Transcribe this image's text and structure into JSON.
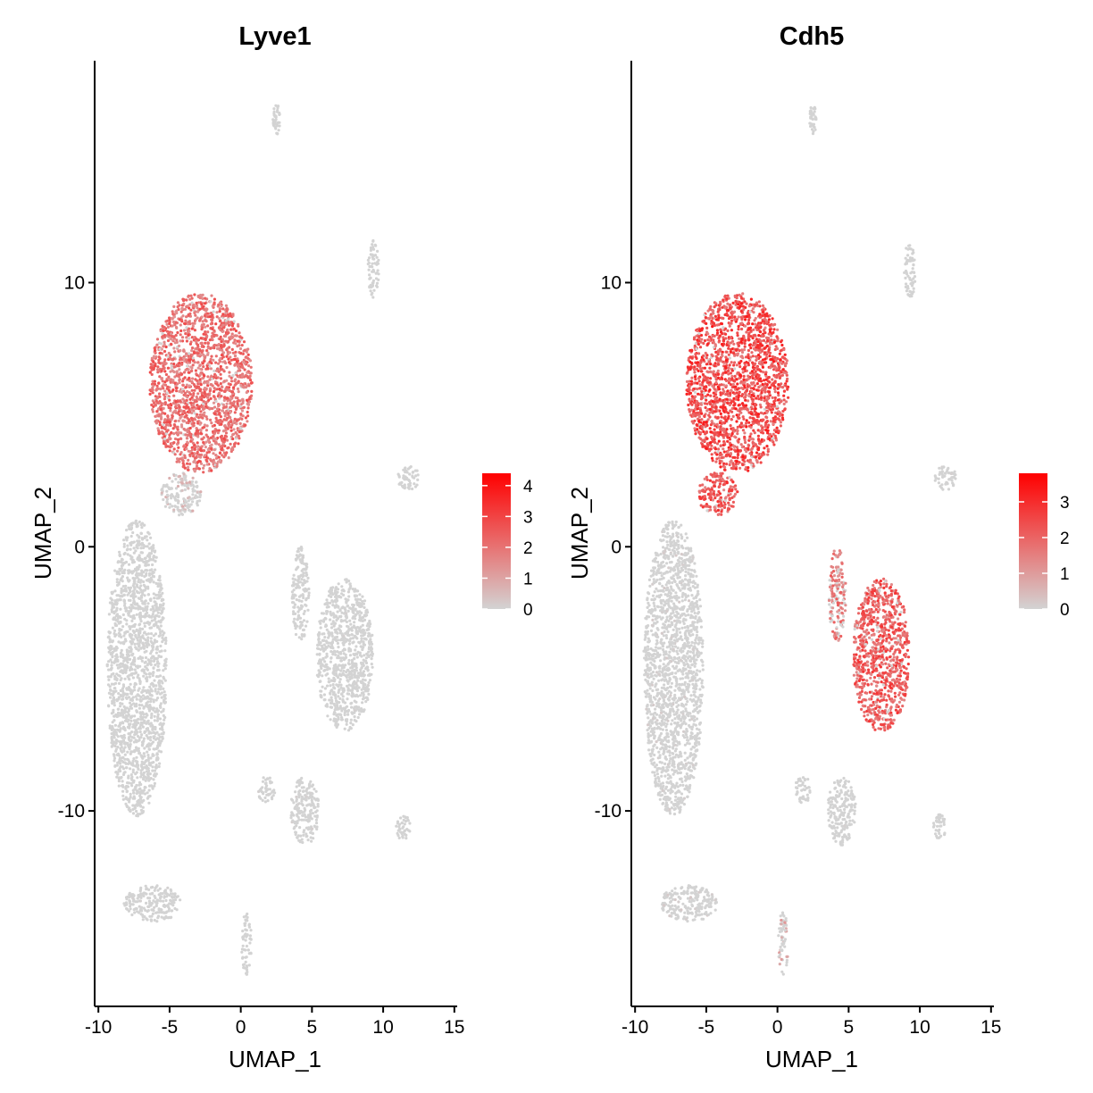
{
  "chart_data": [
    {
      "type": "scatter",
      "title": "Lyve1",
      "xlabel": "UMAP_1",
      "ylabel": "UMAP_2",
      "xlim": [
        -10.2,
        15.2
      ],
      "ylim": [
        -17.4,
        18.4
      ],
      "xticks": [
        -10,
        -5,
        0,
        5,
        10,
        15
      ],
      "xtick_labels": [
        "-10",
        "-5",
        "0",
        "5",
        "10",
        "15"
      ],
      "yticks": [
        -10,
        0,
        10
      ],
      "ytick_labels": [
        "-10",
        "0",
        "10"
      ],
      "grid": false,
      "legend_position": "right",
      "colorscale": {
        "low": "#d3d3d3",
        "high": "#ff0000",
        "min": 0,
        "max": 4.4
      },
      "legend_ticks": [
        0,
        1,
        2,
        3,
        4
      ],
      "legend_labels": [
        "0",
        "1",
        "2",
        "3",
        "4"
      ],
      "clusters": [
        {
          "cx": -2.8,
          "cy": 6.2,
          "rx": 3.6,
          "ry": 3.4,
          "expr": 2.1
        },
        {
          "cx": -4.2,
          "cy": 2.0,
          "rx": 1.4,
          "ry": 0.8,
          "expr": 0.6
        },
        {
          "cx": -7.3,
          "cy": -4.6,
          "rx": 2.1,
          "ry": 5.6,
          "expr": 0.03
        },
        {
          "cx": 7.3,
          "cy": -4.1,
          "rx": 2.0,
          "ry": 2.9,
          "expr": 0.05
        },
        {
          "cx": 4.2,
          "cy": -1.8,
          "rx": 0.6,
          "ry": 1.8,
          "expr": 0.03
        },
        {
          "cx": 2.5,
          "cy": 16.2,
          "rx": 0.25,
          "ry": 0.6,
          "expr": 0.0
        },
        {
          "cx": 9.3,
          "cy": 10.5,
          "rx": 0.4,
          "ry": 1.1,
          "expr": 0.0
        },
        {
          "cx": 11.8,
          "cy": 2.6,
          "rx": 0.8,
          "ry": 0.45,
          "expr": 0.0
        },
        {
          "cx": 4.5,
          "cy": -10.0,
          "rx": 1.0,
          "ry": 1.3,
          "expr": 0.08
        },
        {
          "cx": 1.8,
          "cy": -9.2,
          "rx": 0.6,
          "ry": 0.5,
          "expr": 0.05
        },
        {
          "cx": 11.4,
          "cy": -10.6,
          "rx": 0.5,
          "ry": 0.5,
          "expr": 0.0
        },
        {
          "cx": -6.2,
          "cy": -13.5,
          "rx": 2.0,
          "ry": 0.7,
          "expr": 0.05
        },
        {
          "cx": 0.4,
          "cy": -15.0,
          "rx": 0.35,
          "ry": 1.2,
          "expr": 0.0
        }
      ]
    },
    {
      "type": "scatter",
      "title": "Cdh5",
      "xlabel": "UMAP_1",
      "ylabel": "UMAP_2",
      "xlim": [
        -10.2,
        15.2
      ],
      "ylim": [
        -17.4,
        18.4
      ],
      "xticks": [
        -10,
        -5,
        0,
        5,
        10,
        15
      ],
      "xtick_labels": [
        "-10",
        "-5",
        "0",
        "5",
        "10",
        "15"
      ],
      "yticks": [
        -10,
        0,
        10
      ],
      "ytick_labels": [
        "-10",
        "0",
        "10"
      ],
      "grid": false,
      "legend_position": "right",
      "colorscale": {
        "low": "#d3d3d3",
        "high": "#ff0000",
        "min": 0,
        "max": 3.8
      },
      "legend_ticks": [
        0,
        1,
        2,
        3
      ],
      "legend_labels": [
        "0",
        "1",
        "2",
        "3"
      ],
      "clusters": [
        {
          "cx": -2.8,
          "cy": 6.2,
          "rx": 3.6,
          "ry": 3.4,
          "expr": 2.4
        },
        {
          "cx": -4.2,
          "cy": 2.0,
          "rx": 1.4,
          "ry": 0.8,
          "expr": 2.2
        },
        {
          "cx": -7.3,
          "cy": -4.6,
          "rx": 2.1,
          "ry": 5.6,
          "expr": 0.12
        },
        {
          "cx": 7.3,
          "cy": -4.1,
          "rx": 2.0,
          "ry": 2.9,
          "expr": 2.1
        },
        {
          "cx": 4.2,
          "cy": -1.8,
          "rx": 0.6,
          "ry": 1.8,
          "expr": 1.6
        },
        {
          "cx": 2.5,
          "cy": 16.2,
          "rx": 0.25,
          "ry": 0.6,
          "expr": 0.0
        },
        {
          "cx": 9.3,
          "cy": 10.5,
          "rx": 0.4,
          "ry": 1.1,
          "expr": 0.0
        },
        {
          "cx": 11.8,
          "cy": 2.6,
          "rx": 0.8,
          "ry": 0.45,
          "expr": 0.05
        },
        {
          "cx": 4.5,
          "cy": -10.0,
          "rx": 1.0,
          "ry": 1.3,
          "expr": 0.05
        },
        {
          "cx": 1.8,
          "cy": -9.2,
          "rx": 0.6,
          "ry": 0.5,
          "expr": 0.05
        },
        {
          "cx": 11.4,
          "cy": -10.6,
          "rx": 0.5,
          "ry": 0.5,
          "expr": 0.05
        },
        {
          "cx": -6.2,
          "cy": -13.5,
          "rx": 2.0,
          "ry": 0.7,
          "expr": 0.15
        },
        {
          "cx": 0.4,
          "cy": -15.0,
          "rx": 0.35,
          "ry": 1.2,
          "expr": 0.8
        }
      ]
    }
  ]
}
